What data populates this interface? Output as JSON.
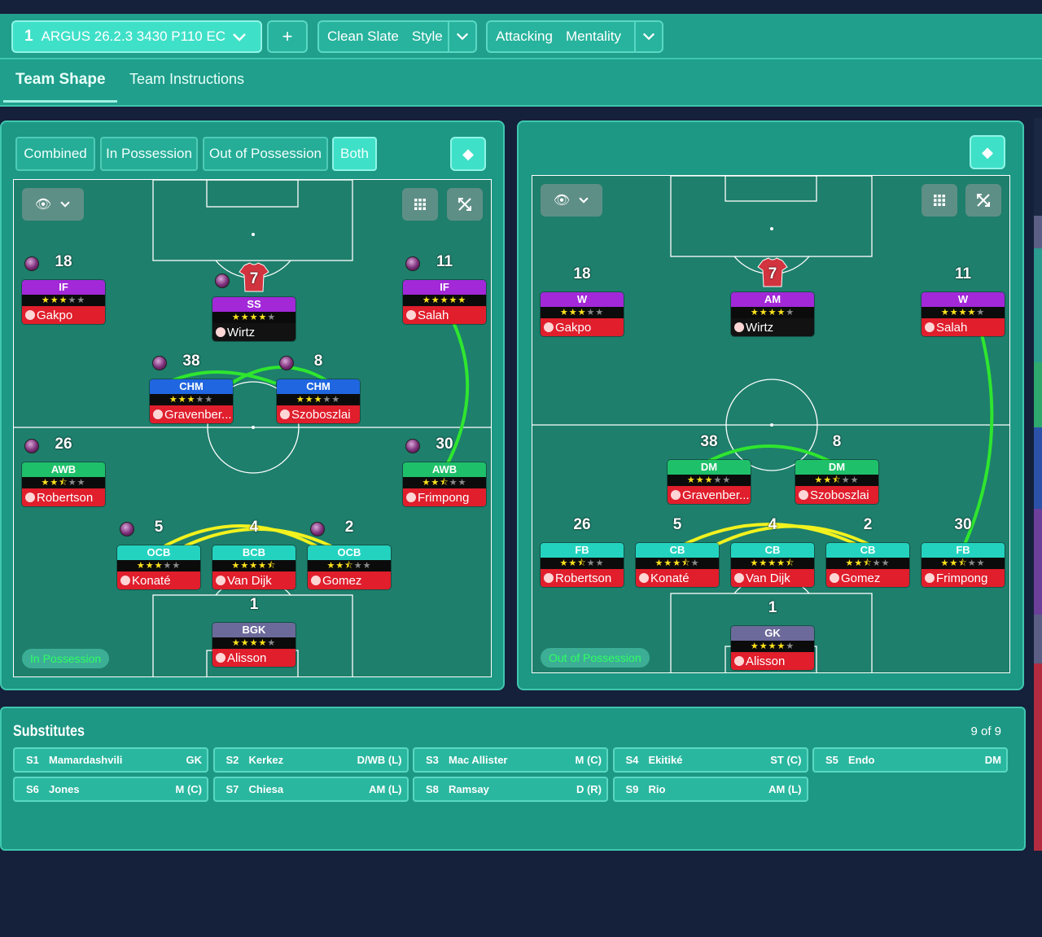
{
  "topbar": {
    "tactic_number": "1",
    "tactic_name": "ARGUS 26.2.3 3430 P110 EC",
    "add_label": "+",
    "style_value": "Clean Slate",
    "style_label": "Style",
    "mentality_value": "Attacking",
    "mentality_label": "Mentality"
  },
  "tabs": [
    {
      "label": "Team Shape",
      "active": true
    },
    {
      "label": "Team Instructions",
      "active": false
    }
  ],
  "view_modes": [
    "Combined",
    "In Possession",
    "Out of Possession",
    "Both"
  ],
  "left_panel": {
    "mode_label": "In Possession",
    "players": [
      {
        "number": "18",
        "role": "IF",
        "name": "Gakpo",
        "stars": "★★★☆☆"
      },
      {
        "number": "7",
        "role": "SS",
        "name": "Wirtz",
        "stars": "★★★★☆"
      },
      {
        "number": "11",
        "role": "IF",
        "name": "Salah",
        "stars": "★★★★★"
      },
      {
        "number": "38",
        "role": "CHM",
        "name": "Gravenber...",
        "stars": "★★★☆☆"
      },
      {
        "number": "8",
        "role": "CHM",
        "name": "Szoboszlai",
        "stars": "★★★☆☆"
      },
      {
        "number": "26",
        "role": "AWB",
        "name": "Robertson",
        "stars": "★★½☆☆"
      },
      {
        "number": "30",
        "role": "AWB",
        "name": "Frimpong",
        "stars": "★★½☆☆"
      },
      {
        "number": "5",
        "role": "OCB",
        "name": "Konaté",
        "stars": "★★★☆☆"
      },
      {
        "number": "4",
        "role": "BCB",
        "name": "Van Dijk",
        "stars": "★★★★½"
      },
      {
        "number": "2",
        "role": "OCB",
        "name": "Gomez",
        "stars": "★★½☆☆"
      },
      {
        "number": "1",
        "role": "BGK",
        "name": "Alisson",
        "stars": "★★★★☆"
      }
    ]
  },
  "right_panel": {
    "mode_label": "Out of Possession",
    "players": [
      {
        "number": "18",
        "role": "W",
        "name": "Gakpo",
        "stars": "★★★☆☆"
      },
      {
        "number": "7",
        "role": "AM",
        "name": "Wirtz",
        "stars": "★★★★☆"
      },
      {
        "number": "11",
        "role": "W",
        "name": "Salah",
        "stars": "★★★★☆"
      },
      {
        "number": "38",
        "role": "DM",
        "name": "Gravenber...",
        "stars": "★★★☆☆"
      },
      {
        "number": "8",
        "role": "DM",
        "name": "Szoboszlai",
        "stars": "★★½☆☆"
      },
      {
        "number": "26",
        "role": "FB",
        "name": "Robertson",
        "stars": "★★½☆☆"
      },
      {
        "number": "5",
        "role": "CB",
        "name": "Konaté",
        "stars": "★★★½☆"
      },
      {
        "number": "4",
        "role": "CB",
        "name": "Van Dijk",
        "stars": "★★★★½"
      },
      {
        "number": "2",
        "role": "CB",
        "name": "Gomez",
        "stars": "★★½☆☆"
      },
      {
        "number": "30",
        "role": "FB",
        "name": "Frimpong",
        "stars": "★★½☆☆"
      },
      {
        "number": "1",
        "role": "GK",
        "name": "Alisson",
        "stars": "★★★★☆"
      }
    ]
  },
  "substitutes": {
    "title": "Substitutes",
    "count": "9 of 9",
    "items": [
      {
        "slot": "S1",
        "name": "Mamardashvili",
        "pos": "GK"
      },
      {
        "slot": "S2",
        "name": "Kerkez",
        "pos": "D/WB (L)"
      },
      {
        "slot": "S3",
        "name": "Mac Allister",
        "pos": "M (C)"
      },
      {
        "slot": "S4",
        "name": "Ekitiké",
        "pos": "ST (C)"
      },
      {
        "slot": "S5",
        "name": "Endo",
        "pos": "DM"
      },
      {
        "slot": "S6",
        "name": "Jones",
        "pos": "M (C)"
      },
      {
        "slot": "S7",
        "name": "Chiesa",
        "pos": "AM (L)"
      },
      {
        "slot": "S8",
        "name": "Ramsay",
        "pos": "D (R)"
      },
      {
        "slot": "S9",
        "name": "Rio",
        "pos": "AM (L)"
      }
    ]
  },
  "icons": {
    "eye": "eye-icon",
    "chevron": "chevron-down-icon",
    "grid": "grid-icon",
    "expand": "expand-icon",
    "diamond": "diamond-icon",
    "ball": "ball-icon",
    "kit": "kit-icon",
    "player_pic": "player-icon"
  },
  "colors": {
    "accent": "#3fe0c8",
    "panel": "#1c9884",
    "pitch": "#1e7f6c",
    "link_green": "#2fe62f",
    "link_yellow": "#f2f21e",
    "attack_role": "#a228d8",
    "mid_role": "#1f66e0",
    "wingback_role": "#1fc06a",
    "defence_role": "#24d3bf",
    "gk_role": "#6c6a9a",
    "name_bg": "#e01e2c"
  }
}
